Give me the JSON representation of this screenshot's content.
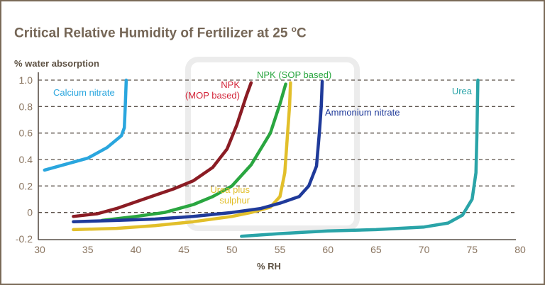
{
  "chart_data": {
    "type": "line",
    "title_prefix": "Critical Relative Humidity of Fertilizer at 25 ",
    "title_sup": "o",
    "title_suffix": "C",
    "xlabel": "% RH",
    "ylabel": "% water absorption",
    "xlim": [
      30,
      80
    ],
    "ylim": [
      -0.2,
      1.0
    ],
    "x_ticks": [
      "30",
      "35",
      "40",
      "45",
      "50",
      "55",
      "60",
      "65",
      "70",
      "75",
      "80"
    ],
    "y_ticks": [
      "1.0",
      "0.8",
      "0.6",
      "0.4",
      "0.2",
      "0",
      "-0.2"
    ],
    "grid": "horizontal dashed",
    "series": [
      {
        "name": "Calcium nitrate",
        "color": "#2aa6de",
        "points": [
          [
            30.5,
            0.32
          ],
          [
            33,
            0.37
          ],
          [
            35,
            0.41
          ],
          [
            37,
            0.49
          ],
          [
            38.5,
            0.58
          ],
          [
            38.8,
            0.64
          ],
          [
            38.9,
            0.8
          ],
          [
            39,
            1.0
          ]
        ]
      },
      {
        "name": "NPK (MOP based)",
        "label_lines": [
          "NPK",
          "(MOP based)"
        ],
        "color": "#8b1c24",
        "label_color": "#d3263a",
        "points": [
          [
            33.5,
            -0.03
          ],
          [
            36,
            -0.01
          ],
          [
            38,
            0.03
          ],
          [
            40,
            0.08
          ],
          [
            42,
            0.13
          ],
          [
            44,
            0.18
          ],
          [
            46,
            0.24
          ],
          [
            48,
            0.34
          ],
          [
            49.5,
            0.48
          ],
          [
            50.5,
            0.66
          ],
          [
            51.5,
            0.88
          ],
          [
            52,
            0.98
          ]
        ]
      },
      {
        "name": "NPK (SOP based)",
        "color": "#2aa640",
        "points": [
          [
            36.5,
            -0.06
          ],
          [
            40,
            -0.03
          ],
          [
            43,
            0.0
          ],
          [
            46,
            0.06
          ],
          [
            48,
            0.12
          ],
          [
            50,
            0.2
          ],
          [
            52,
            0.36
          ],
          [
            54,
            0.6
          ],
          [
            55,
            0.82
          ],
          [
            55.6,
            0.97
          ]
        ]
      },
      {
        "name": "Urea plus sulphur",
        "label_lines": [
          "Urea plus",
          "sulphur"
        ],
        "color": "#e2bf2a",
        "points": [
          [
            33.5,
            -0.13
          ],
          [
            38,
            -0.12
          ],
          [
            42,
            -0.1
          ],
          [
            46,
            -0.07
          ],
          [
            50,
            -0.03
          ],
          [
            52,
            0.0
          ],
          [
            54,
            0.04
          ],
          [
            55,
            0.12
          ],
          [
            55.5,
            0.3
          ],
          [
            55.8,
            0.6
          ],
          [
            56,
            0.8
          ],
          [
            56.1,
            0.98
          ]
        ]
      },
      {
        "name": "Ammonium nitrate",
        "color": "#1f3a9a",
        "points": [
          [
            33.5,
            -0.07
          ],
          [
            38,
            -0.06
          ],
          [
            42,
            -0.05
          ],
          [
            46,
            -0.03
          ],
          [
            50,
            0.0
          ],
          [
            53,
            0.03
          ],
          [
            55,
            0.07
          ],
          [
            57,
            0.12
          ],
          [
            58,
            0.2
          ],
          [
            58.8,
            0.35
          ],
          [
            59.1,
            0.6
          ],
          [
            59.3,
            0.8
          ],
          [
            59.4,
            0.99
          ]
        ]
      },
      {
        "name": "Urea",
        "color": "#2aa4a8",
        "points": [
          [
            51,
            -0.18
          ],
          [
            55,
            -0.16
          ],
          [
            60,
            -0.14
          ],
          [
            65,
            -0.13
          ],
          [
            70,
            -0.11
          ],
          [
            72.5,
            -0.08
          ],
          [
            74,
            -0.02
          ],
          [
            75,
            0.1
          ],
          [
            75.4,
            0.3
          ],
          [
            75.5,
            0.6
          ],
          [
            75.6,
            1.0
          ]
        ]
      }
    ]
  }
}
